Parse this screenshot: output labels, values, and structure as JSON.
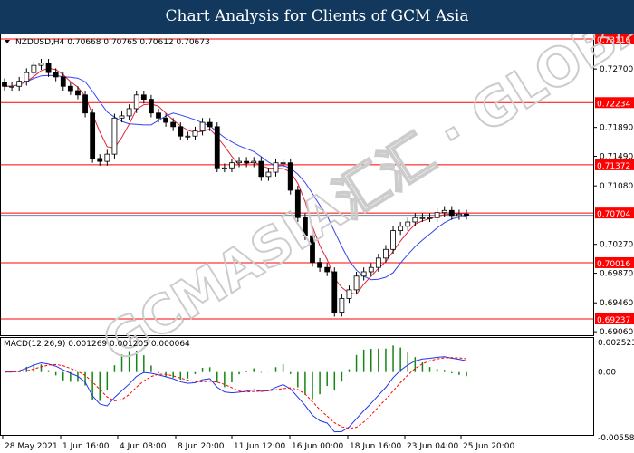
{
  "title": "Chart Analysis for Clients of GCM Asia",
  "chart_data": [
    {
      "type": "candlestick",
      "symbol_info": "NZDUSD,H4  0.70668 0.70765 0.70612 0.70673",
      "ylim": [
        0.69,
        0.7316
      ],
      "y_ticks": [
        "0.72700",
        "0.71890",
        "0.71490",
        "0.71080",
        "0.70270",
        "0.69870",
        "0.69460",
        "0.69060"
      ],
      "y_tick_values": [
        0.727,
        0.7189,
        0.7149,
        0.7108,
        0.7027,
        0.6987,
        0.6946,
        0.6906
      ],
      "levels": [
        {
          "value": 0.73116,
          "label": "0.73116"
        },
        {
          "value": 0.72234,
          "label": "0.72234"
        },
        {
          "value": 0.71372,
          "label": "0.71372"
        },
        {
          "value": 0.70704,
          "label": "0.70704"
        },
        {
          "value": 0.70016,
          "label": "0.70016"
        },
        {
          "value": 0.69237,
          "label": "0.69237"
        }
      ],
      "current_price": 0.70673,
      "closes": [
        0.7246,
        0.7246,
        0.7253,
        0.7265,
        0.7275,
        0.7278,
        0.7265,
        0.7259,
        0.7246,
        0.724,
        0.7234,
        0.7209,
        0.7146,
        0.7142,
        0.7152,
        0.7202,
        0.7205,
        0.7215,
        0.7234,
        0.7228,
        0.7209,
        0.7202,
        0.7196,
        0.719,
        0.7177,
        0.7177,
        0.7184,
        0.7196,
        0.719,
        0.7133,
        0.7133,
        0.714,
        0.7142,
        0.714,
        0.7142,
        0.7121,
        0.7127,
        0.714,
        0.714,
        0.7102,
        0.7064,
        0.7039,
        0.7002,
        0.6995,
        0.6989,
        0.6933,
        0.6952,
        0.6964,
        0.6983,
        0.6989,
        0.6995,
        0.7008,
        0.702,
        0.7046,
        0.7052,
        0.7058,
        0.7064,
        0.7064,
        0.7064,
        0.7071,
        0.7074,
        0.7067,
        0.7069,
        0.70673
      ],
      "ma_colors": {
        "fast": "#e0203a",
        "slow": "#3344ee"
      },
      "level_color": "#ff0000",
      "x_ticks": [
        "28 May 2021",
        "1 Jun 16:00",
        "4 Jun 08:00",
        "8 Jun 20:00",
        "11 Jun 12:00",
        "16 Jun 00:00",
        "18 Jun 16:00",
        "23 Jun 04:00",
        "25 Jun 20:00"
      ]
    },
    {
      "type": "macd",
      "label": "MACD(12,26,9) 0.001269 0.001205 0.000064",
      "ylim": [
        -0.005583,
        0.002523
      ],
      "y_ticks": [
        "0.002523",
        "0.00",
        "-0.005583"
      ],
      "colors": {
        "macd": "#2233ee",
        "signal": "#ff0000",
        "histogram": "#118811"
      }
    }
  ],
  "watermark": "GCMASIA汇汇 · GLOBAL MARKETS"
}
